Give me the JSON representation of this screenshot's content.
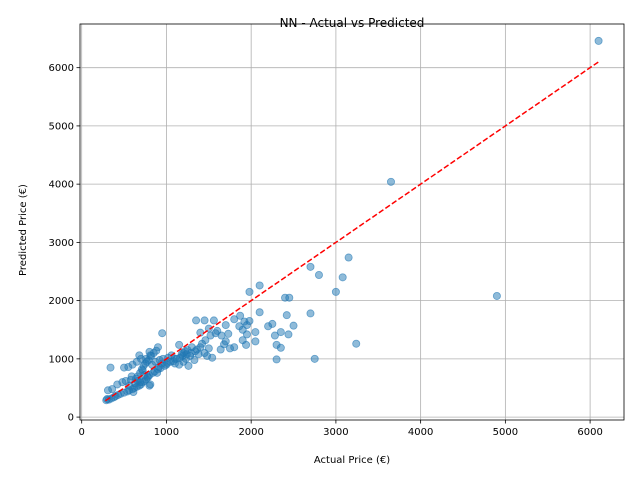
{
  "chart_data": {
    "type": "scatter",
    "title": "NN - Actual vs Predicted",
    "xlabel": "Actual Price (€)",
    "ylabel": "Predicted Price (€)",
    "xlim": [
      -20,
      6400
    ],
    "ylim": [
      -50,
      6750
    ],
    "x_ticks": [
      0,
      1000,
      2000,
      3000,
      4000,
      5000,
      6000
    ],
    "y_ticks": [
      0,
      1000,
      2000,
      3000,
      4000,
      5000,
      6000
    ],
    "grid": true,
    "colors": {
      "points": "#1f77b4",
      "reference_line": "#ff0000",
      "grid": "#b0b0b0"
    },
    "reference_line": {
      "style": "dashed",
      "from": [
        280,
        280
      ],
      "to": [
        6100,
        6100
      ]
    },
    "points": [
      [
        6100,
        6460
      ],
      [
        3650,
        4040
      ],
      [
        4900,
        2080
      ],
      [
        3150,
        2740
      ],
      [
        2700,
        2580
      ],
      [
        2800,
        2440
      ],
      [
        3080,
        2400
      ],
      [
        2100,
        2260
      ],
      [
        1980,
        2150
      ],
      [
        3000,
        2150
      ],
      [
        2400,
        2050
      ],
      [
        2450,
        2050
      ],
      [
        2100,
        1800
      ],
      [
        2700,
        1780
      ],
      [
        2420,
        1750
      ],
      [
        1350,
        1660
      ],
      [
        1450,
        1660
      ],
      [
        1560,
        1660
      ],
      [
        1800,
        1680
      ],
      [
        1920,
        1640
      ],
      [
        2250,
        1600
      ],
      [
        2500,
        1570
      ],
      [
        1870,
        1740
      ],
      [
        1700,
        1580
      ],
      [
        1950,
        1580
      ],
      [
        2200,
        1560
      ],
      [
        1500,
        1520
      ],
      [
        1600,
        1480
      ],
      [
        1900,
        1500
      ],
      [
        2050,
        1460
      ],
      [
        2350,
        1460
      ],
      [
        2440,
        1420
      ],
      [
        2280,
        1400
      ],
      [
        1730,
        1430
      ],
      [
        1650,
        1400
      ],
      [
        1400,
        1450
      ],
      [
        950,
        1440
      ],
      [
        1950,
        1420
      ],
      [
        1900,
        1320
      ],
      [
        2050,
        1300
      ],
      [
        3240,
        1260
      ],
      [
        2300,
        1240
      ],
      [
        2350,
        1190
      ],
      [
        1940,
        1240
      ],
      [
        1800,
        1200
      ],
      [
        1750,
        1180
      ],
      [
        1640,
        1160
      ],
      [
        1500,
        1180
      ],
      [
        1450,
        1100
      ],
      [
        1400,
        1200
      ],
      [
        1300,
        1200
      ],
      [
        1250,
        1150
      ],
      [
        1200,
        1100
      ],
      [
        1150,
        1240
      ],
      [
        1100,
        1000
      ],
      [
        1050,
        950
      ],
      [
        1000,
        900
      ],
      [
        900,
        1200
      ],
      [
        880,
        1140
      ],
      [
        850,
        1100
      ],
      [
        820,
        1050
      ],
      [
        800,
        1120
      ],
      [
        760,
        1000
      ],
      [
        700,
        1000
      ],
      [
        680,
        1060
      ],
      [
        650,
        950
      ],
      [
        600,
        900
      ],
      [
        550,
        860
      ],
      [
        500,
        850
      ],
      [
        340,
        850
      ],
      [
        2300,
        990
      ],
      [
        2750,
        1000
      ],
      [
        1220,
        1130
      ],
      [
        1280,
        1050
      ],
      [
        1330,
        980
      ],
      [
        1380,
        1080
      ],
      [
        1480,
        1050
      ],
      [
        1540,
        1020
      ],
      [
        1150,
        900
      ],
      [
        1200,
        950
      ],
      [
        1260,
        880
      ],
      [
        1100,
        920
      ],
      [
        1180,
        1080
      ],
      [
        1230,
        1000
      ],
      [
        980,
        880
      ],
      [
        930,
        840
      ],
      [
        900,
        820
      ],
      [
        860,
        780
      ],
      [
        840,
        760
      ],
      [
        800,
        720
      ],
      [
        780,
        700
      ],
      [
        760,
        650
      ],
      [
        740,
        620
      ],
      [
        720,
        600
      ],
      [
        700,
        560
      ],
      [
        680,
        540
      ],
      [
        650,
        520
      ],
      [
        620,
        500
      ],
      [
        600,
        480
      ],
      [
        560,
        460
      ],
      [
        540,
        440
      ],
      [
        500,
        420
      ],
      [
        460,
        400
      ],
      [
        430,
        380
      ],
      [
        400,
        360
      ],
      [
        380,
        340
      ],
      [
        350,
        320
      ],
      [
        320,
        300
      ],
      [
        300,
        310
      ],
      [
        290,
        290
      ],
      [
        310,
        460
      ],
      [
        360,
        480
      ],
      [
        420,
        560
      ],
      [
        480,
        600
      ],
      [
        520,
        620
      ],
      [
        580,
        640
      ],
      [
        640,
        660
      ],
      [
        660,
        700
      ],
      [
        690,
        760
      ],
      [
        710,
        820
      ],
      [
        730,
        880
      ],
      [
        750,
        920
      ],
      [
        770,
        950
      ],
      [
        790,
        980
      ],
      [
        810,
        1060
      ],
      [
        830,
        900
      ],
      [
        870,
        950
      ],
      [
        920,
        980
      ],
      [
        960,
        1000
      ],
      [
        1020,
        1020
      ],
      [
        1060,
        1060
      ],
      [
        1080,
        960
      ],
      [
        1120,
        1000
      ],
      [
        1160,
        1020
      ],
      [
        1190,
        1050
      ],
      [
        1240,
        1080
      ],
      [
        1290,
        1100
      ],
      [
        1340,
        1130
      ],
      [
        1360,
        1160
      ],
      [
        1420,
        1260
      ],
      [
        1460,
        1320
      ],
      [
        1520,
        1400
      ],
      [
        1580,
        1440
      ],
      [
        1700,
        1300
      ],
      [
        1680,
        1250
      ],
      [
        1860,
        1560
      ],
      [
        1980,
        1650
      ],
      [
        610,
        430
      ],
      [
        800,
        540
      ],
      [
        810,
        560
      ],
      [
        780,
        680
      ],
      [
        740,
        720
      ],
      [
        690,
        600
      ],
      [
        660,
        620
      ],
      [
        630,
        580
      ],
      [
        590,
        700
      ],
      [
        560,
        540
      ],
      [
        720,
        800
      ],
      [
        890,
        760
      ],
      [
        910,
        860
      ],
      [
        950,
        920
      ],
      [
        1010,
        930
      ]
    ]
  }
}
